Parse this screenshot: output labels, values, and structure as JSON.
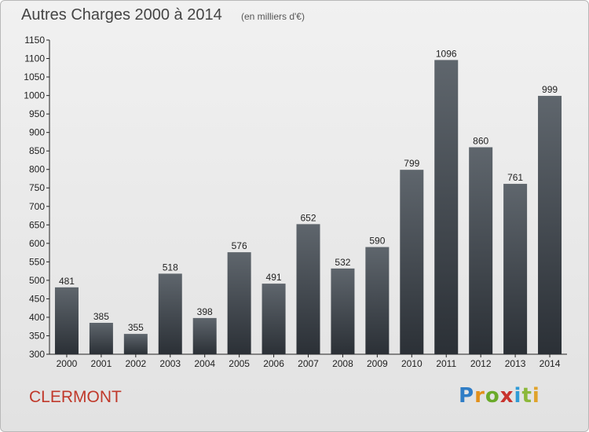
{
  "header": {
    "title": "Autres Charges 2000 à 2014",
    "subtitle": "(en milliers d'€)"
  },
  "footer": {
    "commune": "CLERMONT",
    "brand": "Proxiti"
  },
  "colors": {
    "bar_top": "#5f666d",
    "bar_bottom": "#2b3036",
    "commune": "#c0392b"
  },
  "chart_data": {
    "type": "bar",
    "title": "Autres Charges 2000 à 2014",
    "subtitle": "(en milliers d'€)",
    "categories": [
      "2000",
      "2001",
      "2002",
      "2003",
      "2004",
      "2005",
      "2006",
      "2007",
      "2008",
      "2009",
      "2010",
      "2011",
      "2012",
      "2013",
      "2014"
    ],
    "values": [
      481,
      385,
      355,
      518,
      398,
      576,
      491,
      652,
      532,
      590,
      799,
      1096,
      860,
      761,
      999
    ],
    "ylim": [
      300,
      1150
    ],
    "yticks": [
      300,
      350,
      400,
      450,
      500,
      550,
      600,
      650,
      700,
      750,
      800,
      850,
      900,
      950,
      1000,
      1050,
      1100,
      1150
    ],
    "grid": false,
    "legend": "none"
  }
}
